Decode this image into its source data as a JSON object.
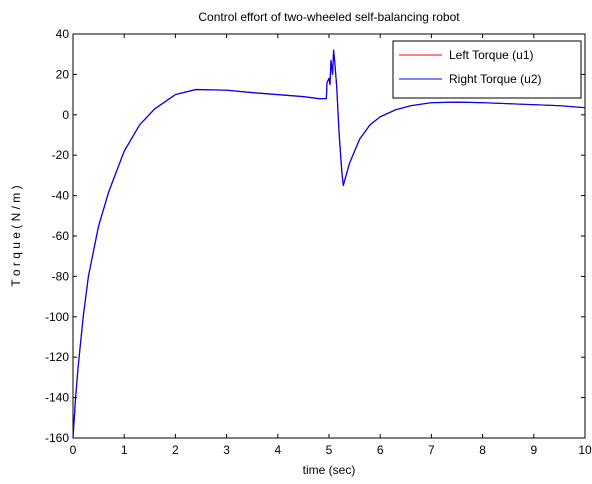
{
  "chart_data": {
    "type": "line",
    "title": "Control effort of two-wheeled self-balancing robot",
    "xlabel": "time (sec)",
    "ylabel": "T o r q u e  ( N / m )",
    "xlim": [
      0,
      10
    ],
    "ylim": [
      -160,
      40
    ],
    "xticks": [
      0,
      1,
      2,
      3,
      4,
      5,
      6,
      7,
      8,
      9,
      10
    ],
    "yticks": [
      -160,
      -140,
      -120,
      -100,
      -80,
      -60,
      -40,
      -20,
      0,
      20,
      40
    ],
    "grid": false,
    "legend_position": "top-right",
    "series": [
      {
        "name": "Left Torque (u1)",
        "color": "#ff0000",
        "x": [
          0,
          0.05,
          0.1,
          0.2,
          0.3,
          0.5,
          0.7,
          1.0,
          1.3,
          1.6,
          2.0,
          2.4,
          3.0,
          3.5,
          4.0,
          4.5,
          4.8,
          4.95,
          4.96,
          5.0,
          5.02,
          5.04,
          5.07,
          5.09,
          5.11,
          5.15,
          5.2,
          5.25,
          5.28,
          5.4,
          5.6,
          5.8,
          6.0,
          6.3,
          6.6,
          7.0,
          7.5,
          8.0,
          8.5,
          9.0,
          9.5,
          10.0
        ],
        "y": [
          -160,
          -140,
          -125,
          -100,
          -80,
          -55,
          -38,
          -18,
          -5,
          3,
          10,
          12.5,
          12.2,
          11,
          10,
          9,
          8,
          8,
          16,
          18,
          15,
          27,
          20,
          32,
          27,
          14,
          -10,
          -28,
          -35,
          -24,
          -12,
          -5,
          -1,
          2.5,
          4.5,
          6,
          6.3,
          6,
          5.5,
          5,
          4.5,
          3.5
        ]
      },
      {
        "name": "Right Torque (u2)",
        "color": "#0000ff",
        "x": [
          0,
          0.05,
          0.1,
          0.2,
          0.3,
          0.5,
          0.7,
          1.0,
          1.3,
          1.6,
          2.0,
          2.4,
          3.0,
          3.5,
          4.0,
          4.5,
          4.8,
          4.95,
          4.96,
          5.0,
          5.02,
          5.04,
          5.07,
          5.09,
          5.11,
          5.15,
          5.2,
          5.25,
          5.28,
          5.4,
          5.6,
          5.8,
          6.0,
          6.3,
          6.6,
          7.0,
          7.5,
          8.0,
          8.5,
          9.0,
          9.5,
          10.0
        ],
        "y": [
          -160,
          -140,
          -125,
          -100,
          -80,
          -55,
          -38,
          -18,
          -5,
          3,
          10,
          12.5,
          12.2,
          11,
          10,
          9,
          8,
          8,
          16,
          18,
          15,
          27,
          20,
          32,
          27,
          14,
          -10,
          -28,
          -35,
          -24,
          -12,
          -5,
          -1,
          2.5,
          4.5,
          6,
          6.3,
          6,
          5.5,
          5,
          4.5,
          3.5
        ]
      }
    ]
  }
}
